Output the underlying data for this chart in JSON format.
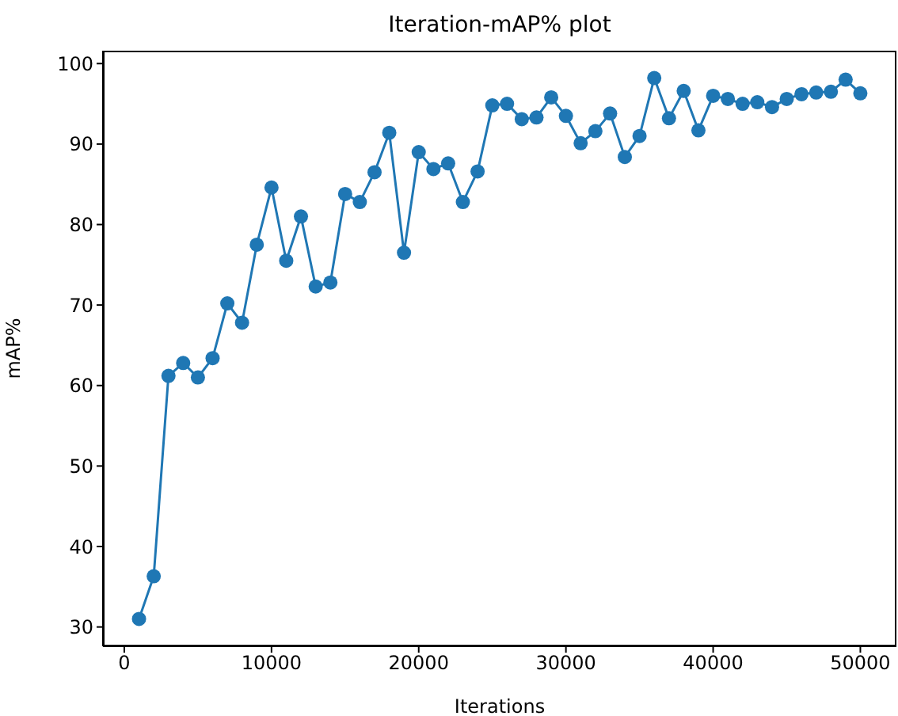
{
  "chart_data": {
    "type": "line",
    "title": "Iteration-mAP% plot",
    "xlabel": "Iterations",
    "ylabel": "mAP%",
    "x": [
      1000,
      2000,
      3000,
      4000,
      5000,
      6000,
      7000,
      8000,
      9000,
      10000,
      11000,
      12000,
      13000,
      14000,
      15000,
      16000,
      17000,
      18000,
      19000,
      20000,
      21000,
      22000,
      23000,
      24000,
      25000,
      26000,
      27000,
      28000,
      29000,
      30000,
      31000,
      32000,
      33000,
      34000,
      35000,
      36000,
      37000,
      38000,
      39000,
      40000,
      41000,
      42000,
      43000,
      44000,
      45000,
      46000,
      47000,
      48000,
      49000,
      50000
    ],
    "series": [
      {
        "color": "#1f77b4",
        "values": [
          31,
          36.3,
          61.2,
          62.8,
          61,
          63.4,
          70.2,
          67.8,
          77.5,
          84.6,
          75.5,
          81,
          72.3,
          72.8,
          83.8,
          82.8,
          86.5,
          91.4,
          76.5,
          89,
          86.9,
          87.6,
          82.8,
          86.6,
          94.8,
          95,
          93.1,
          93.3,
          95.8,
          93.5,
          90.1,
          91.6,
          93.8,
          88.4,
          91,
          98.2,
          93.2,
          96.6,
          91.7,
          96,
          95.6,
          95,
          95.2,
          94.6,
          95.6,
          96.2,
          96.4,
          96.5,
          98,
          96.3
        ]
      }
    ],
    "xlim": [
      -1450,
      52450
    ],
    "xticks": [
      0,
      10000,
      20000,
      30000,
      40000,
      50000
    ],
    "ylim": [
      27.6,
      101.6
    ],
    "yticks": [
      30,
      40,
      50,
      60,
      70,
      80,
      90,
      100
    ],
    "marker": "circle",
    "line_style": "solid",
    "grid": false,
    "legend": false
  }
}
